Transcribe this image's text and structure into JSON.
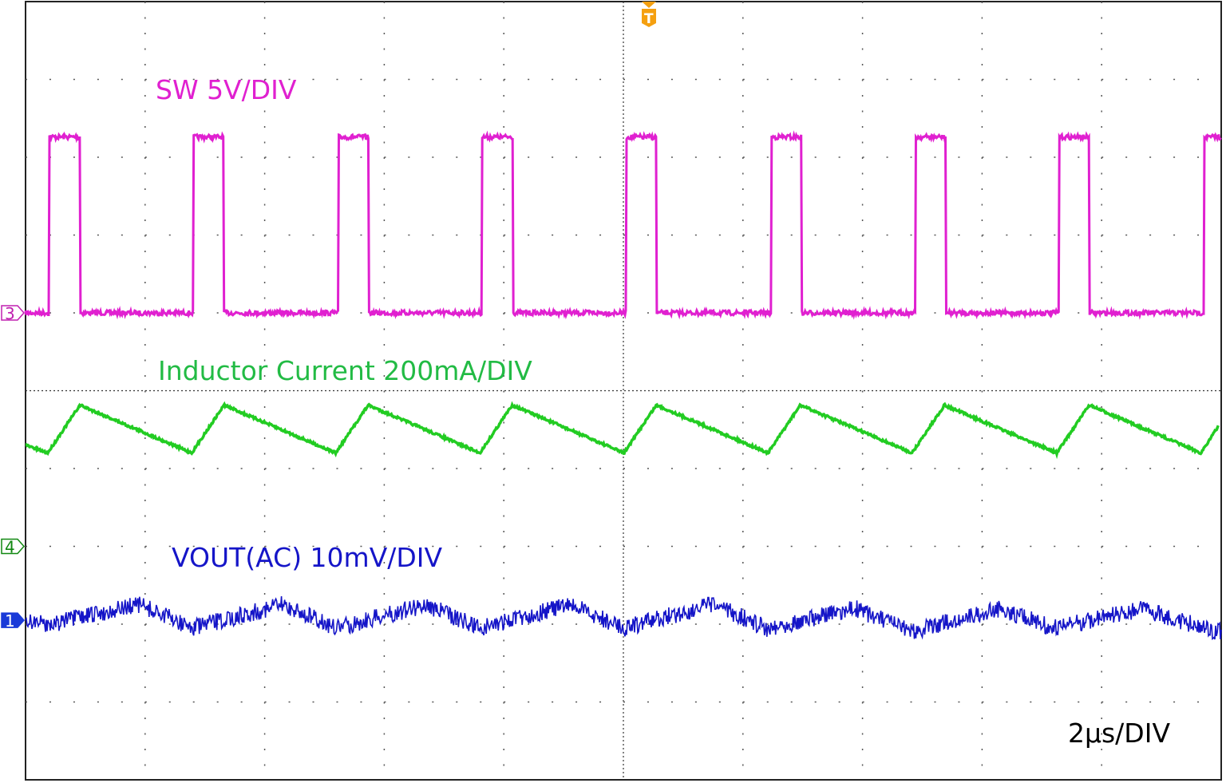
{
  "chart_data": {
    "type": "line",
    "title": "",
    "x_unit": "µs",
    "xlim": [
      0,
      20
    ],
    "timebase_label": "2µs/DIV",
    "divisions": {
      "horizontal": 10,
      "vertical": 10
    },
    "grid": true,
    "trigger_marker": "T",
    "series": [
      {
        "name": "SW 5V/DIV",
        "channel": "3",
        "color": "#e020d0",
        "unit": "V",
        "volts_per_div": 5,
        "ref_div": 1,
        "low": 0,
        "high": 11.3,
        "pulse_rise_times": [
          0.4,
          2.81,
          5.23,
          7.64,
          10.05,
          12.47,
          14.88,
          17.29,
          19.71
        ],
        "pulse_width": 0.51
      },
      {
        "name": "Inductor Current 200mA/DIV",
        "channel": "4",
        "color": "#22cc22",
        "unit": "mA",
        "amps_per_div": 200,
        "ref_div": -2,
        "points": [
          [
            0,
            260
          ],
          [
            0.37,
            240
          ],
          [
            0.91,
            363
          ],
          [
            2.78,
            240
          ],
          [
            3.32,
            363
          ],
          [
            5.19,
            240
          ],
          [
            5.73,
            363
          ],
          [
            7.6,
            240
          ],
          [
            8.14,
            363
          ],
          [
            10.01,
            240
          ],
          [
            10.55,
            363
          ],
          [
            12.42,
            240
          ],
          [
            12.96,
            363
          ],
          [
            14.83,
            240
          ],
          [
            15.37,
            363
          ],
          [
            17.25,
            240
          ],
          [
            17.79,
            363
          ],
          [
            19.66,
            240
          ],
          [
            19.95,
            308
          ]
        ]
      },
      {
        "name": "VOUT(AC) 10mV/DIV",
        "channel": "1",
        "color": "#1515c8",
        "unit": "mV",
        "mv_per_div": 10,
        "ref_div": -2.95,
        "points": [
          [
            0,
            0
          ],
          [
            0.4,
            -0.5
          ],
          [
            1.9,
            2.0
          ],
          [
            2.8,
            -1.0
          ],
          [
            4.3,
            2.0
          ],
          [
            5.2,
            -1.0
          ],
          [
            6.7,
            2.0
          ],
          [
            7.6,
            -1.0
          ],
          [
            9.1,
            2.0
          ],
          [
            10.0,
            -1.0
          ],
          [
            11.5,
            2.0
          ],
          [
            12.4,
            -1.0
          ],
          [
            13.9,
            1.5
          ],
          [
            14.8,
            -1.5
          ],
          [
            16.3,
            1.5
          ],
          [
            17.2,
            -1.0
          ],
          [
            18.7,
            1.5
          ],
          [
            19.7,
            -1.0
          ],
          [
            20,
            -1.5
          ]
        ]
      }
    ]
  }
}
